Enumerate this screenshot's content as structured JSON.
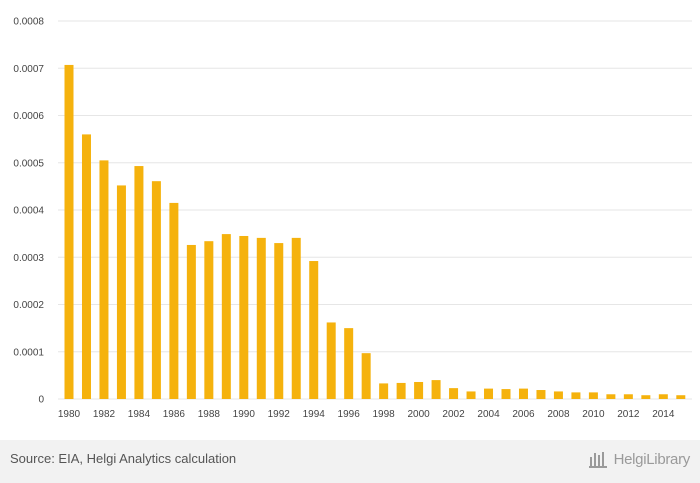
{
  "chart_data": {
    "type": "bar",
    "categories": [
      "1980",
      "1981",
      "1982",
      "1983",
      "1984",
      "1985",
      "1986",
      "1987",
      "1988",
      "1989",
      "1990",
      "1991",
      "1992",
      "1993",
      "1994",
      "1995",
      "1996",
      "1997",
      "1998",
      "1999",
      "2000",
      "2001",
      "2002",
      "2003",
      "2004",
      "2005",
      "2006",
      "2007",
      "2008",
      "2009",
      "2010",
      "2011",
      "2012",
      "2013",
      "2014",
      "2015"
    ],
    "x_tick_labels": [
      "1980",
      "1982",
      "1984",
      "1986",
      "1988",
      "1990",
      "1992",
      "1994",
      "1996",
      "1998",
      "2000",
      "2002",
      "2004",
      "2006",
      "2008",
      "2010",
      "2012",
      "2014"
    ],
    "values": [
      0.000707,
      0.00056,
      0.000505,
      0.000452,
      0.000493,
      0.000461,
      0.000415,
      0.000326,
      0.000334,
      0.000349,
      0.000345,
      0.000341,
      0.00033,
      0.000341,
      0.000292,
      0.000162,
      0.00015,
      9.7e-05,
      3.3e-05,
      3.4e-05,
      3.6e-05,
      4e-05,
      2.3e-05,
      1.6e-05,
      2.2e-05,
      2.1e-05,
      2.2e-05,
      1.9e-05,
      1.6e-05,
      1.4e-05,
      1.4e-05,
      1e-05,
      1e-05,
      8e-06,
      1e-05,
      8e-06
    ],
    "y_ticks": [
      "0",
      "0.0001",
      "0.0002",
      "0.0003",
      "0.0004",
      "0.0005",
      "0.0006",
      "0.0007",
      "0.0008"
    ],
    "ylim": [
      0,
      0.0008
    ],
    "grid": true,
    "bar_color": "#f5b20d",
    "grid_color": "#e6e6e6",
    "title": "",
    "xlabel": "",
    "ylabel": ""
  },
  "footer": {
    "source_text": "Source: EIA, Helgi Analytics calculation",
    "brand_text": "HelgiLibrary",
    "brand_icon": "helgi-logo-icon",
    "background": "#f2f2f2"
  }
}
